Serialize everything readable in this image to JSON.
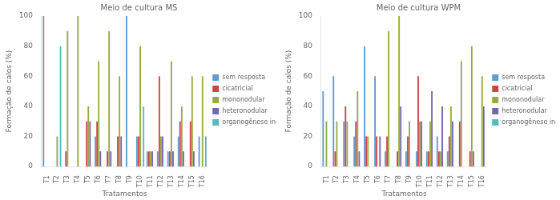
{
  "chart_data": [
    {
      "type": "bar",
      "title": "Meio de cultura MS",
      "x_label": "Tratamentos",
      "y_label": "Formação de calos (%)",
      "categories": [
        "T1",
        "T2",
        "T3",
        "T4",
        "T5",
        "T6",
        "T7",
        "T8",
        "T9",
        "T10",
        "T11",
        "T12",
        "T13",
        "T14",
        "T15",
        "T16"
      ],
      "series": [
        {
          "name": "sem resposta",
          "color": "#6699CC",
          "values": [
            100,
            0,
            0,
            0,
            0,
            20,
            0,
            0,
            100,
            20,
            10,
            10,
            10,
            20,
            0,
            20
          ]
        },
        {
          "name": "cicatricial",
          "color": "#CC4444",
          "values": [
            0,
            0,
            10,
            0,
            30,
            30,
            10,
            20,
            0,
            20,
            10,
            60,
            10,
            30,
            30,
            0
          ]
        },
        {
          "name": "mononodular",
          "color": "#99AA44",
          "values": [
            0,
            20,
            90,
            100,
            40,
            70,
            90,
            60,
            0,
            80,
            10,
            20,
            70,
            40,
            60,
            60
          ]
        },
        {
          "name": "heteronodular",
          "color": "#7766AA",
          "values": [
            0,
            0,
            0,
            0,
            30,
            10,
            10,
            20,
            0,
            0,
            10,
            20,
            10,
            10,
            10,
            0
          ]
        },
        {
          "name": "organogênese indireta",
          "color": "#55BBBB",
          "values": [
            0,
            80,
            0,
            0,
            0,
            0,
            0,
            0,
            0,
            40,
            0,
            0,
            0,
            0,
            0,
            20
          ]
        }
      ],
      "ylim": [
        0,
        100
      ],
      "yticks": [
        0,
        20,
        40,
        60,
        80,
        100
      ],
      "grid": false,
      "legend": "right"
    },
    {
      "type": "bar",
      "title": "Meio de cultura WPM",
      "x_label": "Tratamentos",
      "y_label": "Formação de calos (%)",
      "categories": [
        "T1",
        "T2",
        "T3",
        "T4",
        "T5",
        "T6",
        "T7",
        "T8",
        "T9",
        "T10",
        "T11",
        "T12",
        "T13",
        "T14",
        "T15",
        "T16"
      ],
      "series": [
        {
          "name": "sem resposta",
          "color": "#6699CC",
          "values": [
            50,
            60,
            30,
            20,
            80,
            60,
            10,
            0,
            10,
            10,
            10,
            20,
            10,
            0,
            0,
            0
          ]
        },
        {
          "name": "cicatricial",
          "color": "#CC4444",
          "values": [
            0,
            10,
            40,
            30,
            20,
            20,
            20,
            10,
            20,
            60,
            10,
            10,
            20,
            30,
            10,
            0
          ]
        },
        {
          "name": "mononodular",
          "color": "#99AA44",
          "values": [
            30,
            30,
            30,
            50,
            20,
            0,
            90,
            100,
            30,
            30,
            30,
            10,
            40,
            70,
            80,
            60
          ]
        },
        {
          "name": "heteronodular",
          "color": "#7766AA",
          "values": [
            0,
            0,
            0,
            10,
            0,
            20,
            0,
            40,
            0,
            30,
            50,
            40,
            30,
            0,
            10,
            40
          ]
        },
        {
          "name": "organogênese indireta",
          "color": "#55BBBB",
          "values": [
            0,
            0,
            0,
            0,
            0,
            0,
            0,
            0,
            0,
            0,
            0,
            0,
            0,
            0,
            0,
            0
          ]
        }
      ],
      "ylim": [
        0,
        100
      ],
      "yticks": [
        0,
        20,
        40,
        60,
        80,
        100
      ],
      "grid": false,
      "legend": "right"
    }
  ]
}
